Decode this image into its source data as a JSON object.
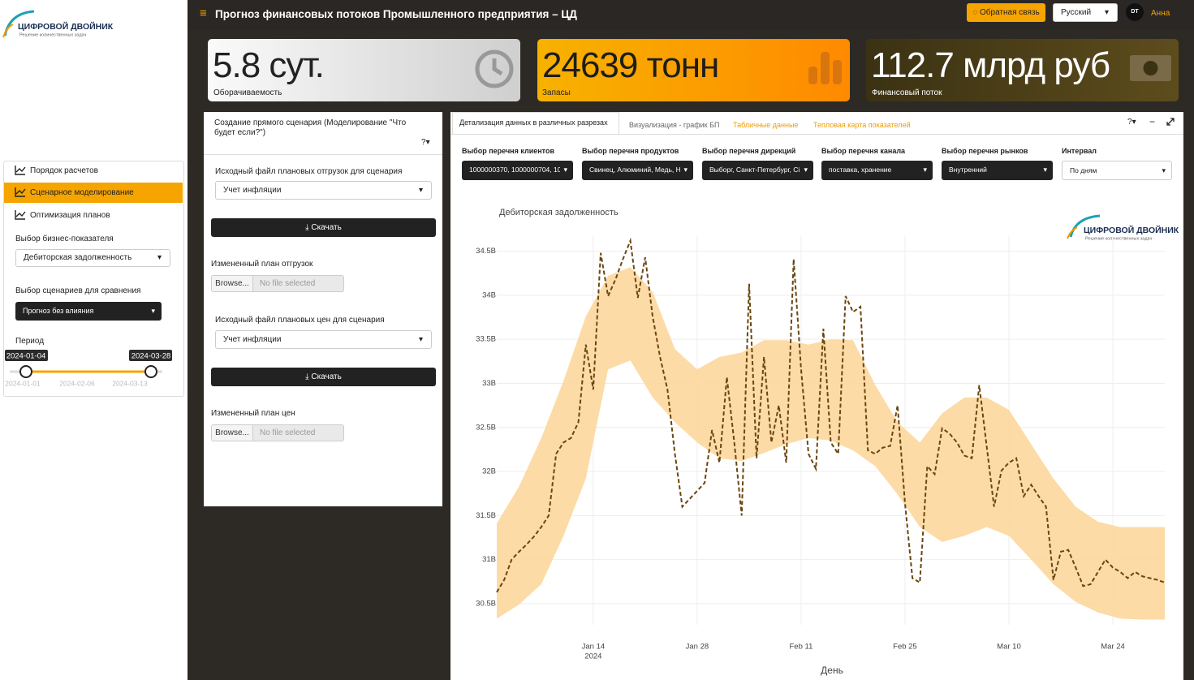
{
  "header": {
    "title": "Прогноз финансовых потоков Промышленного предприятия – ЦД",
    "feedback": "Обратная связь",
    "language": "Русский",
    "avatar": "DT",
    "user": "Анна"
  },
  "logo": {
    "title": "ЦИФРОВОЙ ДВОЙНИК",
    "subtitle": "Решение количественных задач"
  },
  "sidebar": {
    "menu": [
      "Порядок расчетов",
      "Сценарное моделирование",
      "Оптимизация планов"
    ],
    "metric_label": "Выбор бизнес-показателя",
    "metric_value": "Дебиторская задолженность",
    "compare_label": "Выбор сценариев для сравнения",
    "compare_value": "Прогноз без влияния",
    "period_label": "Период",
    "period_start": "2024-01-04",
    "period_end": "2024-03-28",
    "period_ticks": [
      "2024-01-01",
      "2024-02-06",
      "2024-03-13"
    ]
  },
  "value_boxes": [
    {
      "value": "5.8 сут.",
      "label": "Оборачиваемость"
    },
    {
      "value": "24639 тонн",
      "label": "Запасы"
    },
    {
      "value": "112.7 млрд руб",
      "label": "Финансовый поток"
    }
  ],
  "scenario": {
    "title": "Создание прямого сценария (Моделирование \"Что будет если?\")",
    "help": "?",
    "sections": [
      {
        "label": "Исходный файл плановых отгрузок для сценария",
        "value": "Учет инфляции",
        "button": "Скачать"
      },
      {
        "label": "Измененный план отгрузок",
        "browse": "Browse...",
        "file": "No file selected"
      },
      {
        "label": "Исходный файл плановых цен для сценария",
        "value": "Учет инфляции",
        "button": "Скачать"
      },
      {
        "label": "Измененный план цен",
        "browse": "Browse...",
        "file": "No file selected"
      }
    ]
  },
  "details": {
    "tabs": [
      "Детализация данных в различных разрезах",
      "Визуализация - график БП",
      "Табличные данные",
      "Тепловая карта показателей"
    ],
    "help": "?",
    "filters": [
      {
        "label": "Выбор перечня клиентов",
        "value": "1000000370, 1000000704, 1000"
      },
      {
        "label": "Выбор перечня продуктов",
        "value": "Свинец, Алюминий, Медь, Ни"
      },
      {
        "label": "Выбор перечня дирекций",
        "value": "Выборг, Санкт-Петербург, Сі"
      },
      {
        "label": "Выбор перечня канала",
        "value": "поставка, хранение"
      },
      {
        "label": "Выбор перечня рынков",
        "value": "Внутренний"
      },
      {
        "label": "Интервал",
        "value": "По дням"
      }
    ]
  },
  "chart_data": {
    "type": "line",
    "title": "Дебиторская задолженность",
    "x_label": "День",
    "x": [
      "2024-01-01",
      "2024-01-02",
      "2024-01-03",
      "2024-01-04",
      "2024-01-05",
      "2024-01-06",
      "2024-01-07",
      "2024-01-08",
      "2024-01-09",
      "2024-01-10",
      "2024-01-11",
      "2024-01-12",
      "2024-01-13",
      "2024-01-14",
      "2024-01-15",
      "2024-01-16",
      "2024-01-17",
      "2024-01-18",
      "2024-01-19",
      "2024-01-20",
      "2024-01-21",
      "2024-01-22",
      "2024-01-23",
      "2024-01-24",
      "2024-01-25",
      "2024-01-26",
      "2024-01-27",
      "2024-01-28",
      "2024-01-29",
      "2024-01-30",
      "2024-01-31",
      "2024-02-01",
      "2024-02-02",
      "2024-02-03",
      "2024-02-04",
      "2024-02-05",
      "2024-02-06",
      "2024-02-07",
      "2024-02-08",
      "2024-02-09",
      "2024-02-10",
      "2024-02-11",
      "2024-02-12",
      "2024-02-13",
      "2024-02-14",
      "2024-02-15",
      "2024-02-16",
      "2024-02-17",
      "2024-02-18",
      "2024-02-19",
      "2024-02-20",
      "2024-02-21",
      "2024-02-22",
      "2024-02-23",
      "2024-02-24",
      "2024-02-25",
      "2024-02-26",
      "2024-02-27",
      "2024-02-28",
      "2024-02-29",
      "2024-03-01",
      "2024-03-02",
      "2024-03-03",
      "2024-03-04",
      "2024-03-05",
      "2024-03-06",
      "2024-03-07",
      "2024-03-08",
      "2024-03-09",
      "2024-03-10",
      "2024-03-11",
      "2024-03-12",
      "2024-03-13",
      "2024-03-14",
      "2024-03-15",
      "2024-03-16",
      "2024-03-17",
      "2024-03-18",
      "2024-03-19",
      "2024-03-20",
      "2024-03-21",
      "2024-03-22",
      "2024-03-23",
      "2024-03-24",
      "2024-03-25",
      "2024-03-26",
      "2024-03-27",
      "2024-03-28",
      "2024-03-29",
      "2024-03-30",
      "2024-03-31"
    ],
    "series": [
      {
        "color": "#6b4610",
        "dashed": true,
        "values": [
          30630000000.0,
          30770000000.0,
          31000000000.0,
          31090000000.0,
          31170000000.0,
          31260000000.0,
          31370000000.0,
          31500000000.0,
          32200000000.0,
          32330000000.0,
          32380000000.0,
          32560000000.0,
          33440000000.0,
          32930000000.0,
          34480000000.0,
          33990000000.0,
          34180000000.0,
          34410000000.0,
          34620000000.0,
          33970000000.0,
          34430000000.0,
          33760000000.0,
          33300000000.0,
          32930000000.0,
          32200000000.0,
          31600000000.0,
          31690000000.0,
          31780000000.0,
          31870000000.0,
          32470000000.0,
          32100000000.0,
          33070000000.0,
          32330000000.0,
          31500000000.0,
          34130000000.0,
          32150000000.0,
          33300000000.0,
          32330000000.0,
          32750000000.0,
          32100000000.0,
          34410000000.0,
          33160000000.0,
          32200000000.0,
          32030000000.0,
          33620000000.0,
          32330000000.0,
          32200000000.0,
          33990000000.0,
          33810000000.0,
          33870000000.0,
          32240000000.0,
          32200000000.0,
          32270000000.0,
          32290000000.0,
          32750000000.0,
          31640000000.0,
          30790000000.0,
          30740000000.0,
          32060000000.0,
          31970000000.0,
          32490000000.0,
          32430000000.0,
          32330000000.0,
          32180000000.0,
          32150000000.0,
          32980000000.0,
          32290000000.0,
          31600000000.0,
          32010000000.0,
          32100000000.0,
          32150000000.0,
          31720000000.0,
          31850000000.0,
          31720000000.0,
          31600000000.0,
          30770000000.0,
          31090000000.0,
          31110000000.0,
          30910000000.0,
          30700000000.0,
          30720000000.0,
          30860000000.0,
          31000000000.0,
          30910000000.0,
          30860000000.0,
          30790000000.0,
          30860000000.0,
          30810000000.0,
          30790000000.0,
          30770000000.0,
          30740000000.0
        ]
      }
    ],
    "band": {
      "color": "#fdd596",
      "x": [
        "2024-01-01",
        "2024-01-04",
        "2024-01-07",
        "2024-01-10",
        "2024-01-13",
        "2024-01-16",
        "2024-01-19",
        "2024-01-22",
        "2024-01-25",
        "2024-01-28",
        "2024-01-31",
        "2024-02-03",
        "2024-02-06",
        "2024-02-09",
        "2024-02-12",
        "2024-02-15",
        "2024-02-18",
        "2024-02-21",
        "2024-02-24",
        "2024-02-27",
        "2024-03-01",
        "2024-03-04",
        "2024-03-07",
        "2024-03-10",
        "2024-03-13",
        "2024-03-16",
        "2024-03-19",
        "2024-03-22",
        "2024-03-25",
        "2024-03-28",
        "2024-03-31"
      ],
      "upper": [
        31410000000.0,
        31830000000.0,
        32380000000.0,
        33030000000.0,
        33760000000.0,
        34220000000.0,
        34320000000.0,
        34040000000.0,
        33390000000.0,
        33160000000.0,
        33300000000.0,
        33350000000.0,
        33490000000.0,
        33490000000.0,
        33440000000.0,
        33500000000.0,
        33490000000.0,
        32980000000.0,
        32560000000.0,
        32330000000.0,
        32660000000.0,
        32840000000.0,
        32840000000.0,
        32700000000.0,
        32310000000.0,
        31920000000.0,
        31600000000.0,
        31430000000.0,
        31370000000.0,
        31370000000.0,
        31370000000.0
      ],
      "lower": [
        30330000000.0,
        30490000000.0,
        30720000000.0,
        31270000000.0,
        31920000000.0,
        33160000000.0,
        33260000000.0,
        32840000000.0,
        32560000000.0,
        32330000000.0,
        32150000000.0,
        32120000000.0,
        32210000000.0,
        32310000000.0,
        32380000000.0,
        32350000000.0,
        32240000000.0,
        32060000000.0,
        31740000000.0,
        31370000000.0,
        31200000000.0,
        31270000000.0,
        31370000000.0,
        31270000000.0,
        31000000000.0,
        30720000000.0,
        30520000000.0,
        30400000000.0,
        30330000000.0,
        30320000000.0,
        30320000000.0
      ]
    },
    "xlim": [
      "2024-01-01",
      "2024-03-31"
    ],
    "xticks": [
      {
        "value": "2024-01-14",
        "label": "Jan 14",
        "year": "2024"
      },
      {
        "value": "2024-01-28",
        "label": "Jan 28"
      },
      {
        "value": "2024-02-11",
        "label": "Feb 11"
      },
      {
        "value": "2024-02-25",
        "label": "Feb 25"
      },
      {
        "value": "2024-03-10",
        "label": "Mar 10"
      },
      {
        "value": "2024-03-24",
        "label": "Mar 24"
      }
    ],
    "ylim": [
      30260000000.0,
      34680000000.0
    ],
    "yticks": [
      {
        "value": 30500000000.0,
        "label": "30.5B"
      },
      {
        "value": 31000000000.0,
        "label": "31B"
      },
      {
        "value": 31500000000.0,
        "label": "31.5B"
      },
      {
        "value": 32000000000.0,
        "label": "32B"
      },
      {
        "value": 32500000000.0,
        "label": "32.5B"
      },
      {
        "value": 33000000000.0,
        "label": "33B"
      },
      {
        "value": 33500000000.0,
        "label": "33.5B"
      },
      {
        "value": 34000000000.0,
        "label": "34B"
      },
      {
        "value": 34500000000.0,
        "label": "34.5B"
      }
    ],
    "grid": true
  }
}
